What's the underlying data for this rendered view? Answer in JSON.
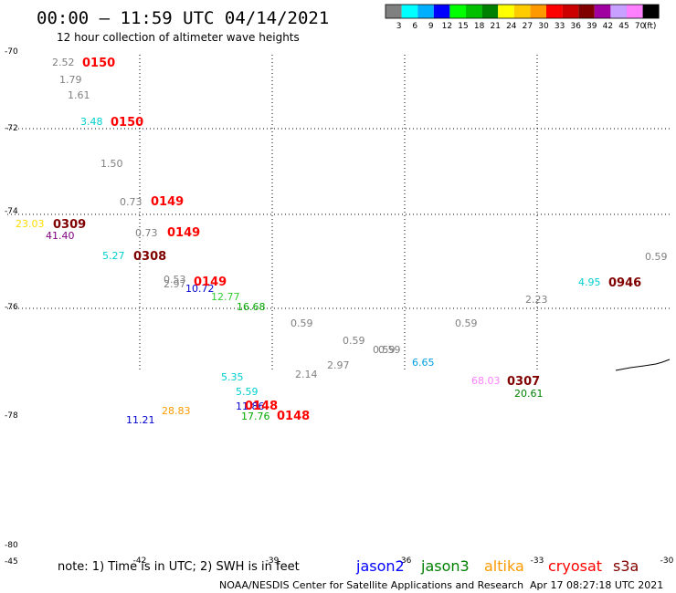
{
  "chart_data": {
    "type": "scatter",
    "title": "00:00 – 11:59 UTC 04/14/2021",
    "subtitle": "12 hour collection of altimeter wave heights",
    "y_ticks": [
      "-70",
      "-72",
      "-74",
      "-76",
      "-78",
      "-80"
    ],
    "x_ticks": [
      "-45",
      "-42",
      "-39",
      "-36",
      "-33",
      "-30"
    ],
    "colorbar": {
      "labels": [
        "3",
        "6",
        "9",
        "12",
        "15",
        "18",
        "21",
        "24",
        "27",
        "30",
        "33",
        "36",
        "39",
        "42",
        "45",
        "70",
        "(ft)"
      ],
      "colors": [
        "#808080",
        "#00ffff",
        "#00b0ff",
        "#0000ff",
        "#00ff00",
        "#00c000",
        "#008000",
        "#ffff00",
        "#ffcc00",
        "#ff9900",
        "#ff0000",
        "#cc0000",
        "#800000",
        "#a000a0",
        "#c8a0ff",
        "#ff80ff",
        "#000000"
      ]
    },
    "observations": [
      {
        "text": "2.52",
        "color": "#808080"
      },
      {
        "text": "1.79",
        "color": "#808080"
      },
      {
        "text": "1.61",
        "color": "#808080"
      },
      {
        "text": "3.48",
        "color": "#00d0d0"
      },
      {
        "text": "1.50",
        "color": "#808080"
      },
      {
        "text": "0.73",
        "color": "#808080"
      },
      {
        "text": "23.03",
        "color": "#ffdd00"
      },
      {
        "text": "41.40",
        "color": "#800080"
      },
      {
        "text": "0.73",
        "color": "#808080"
      },
      {
        "text": "5.27",
        "color": "#00d0d0"
      },
      {
        "text": "0.53",
        "color": "#808080"
      },
      {
        "text": "2.97",
        "color": "#808080"
      },
      {
        "text": "10.72",
        "color": "#0000cc"
      },
      {
        "text": "12.77",
        "color": "#33cc33"
      },
      {
        "text": "16.68",
        "color": "#00aa00"
      },
      {
        "text": "0.59",
        "color": "#808080"
      },
      {
        "text": "0.59",
        "color": "#808080"
      },
      {
        "text": "0.59",
        "color": "#808080"
      },
      {
        "text": "0.59",
        "color": "#808080"
      },
      {
        "text": "0.59",
        "color": "#808080"
      },
      {
        "text": "2.97",
        "color": "#808080"
      },
      {
        "text": "2.14",
        "color": "#808080"
      },
      {
        "text": "6.65",
        "color": "#00a0e0"
      },
      {
        "text": "5.35",
        "color": "#00d0d0"
      },
      {
        "text": "5.59",
        "color": "#00d0d0"
      },
      {
        "text": "11.86",
        "color": "#0000cc"
      },
      {
        "text": "17.76",
        "color": "#00aa00"
      },
      {
        "text": "28.83",
        "color": "#ff9900"
      },
      {
        "text": "11.21",
        "color": "#0000cc"
      },
      {
        "text": "68.03",
        "color": "#ff80ff"
      },
      {
        "text": "20.61",
        "color": "#008000"
      },
      {
        "text": "2.23",
        "color": "#808080"
      },
      {
        "text": "4.95",
        "color": "#00d0d0"
      },
      {
        "text": "0.59",
        "color": "#808080"
      }
    ],
    "pass_times": [
      {
        "text": "0150",
        "color": "#ff0000"
      },
      {
        "text": "0150",
        "color": "#ff0000"
      },
      {
        "text": "0149",
        "color": "#ff0000"
      },
      {
        "text": "0309",
        "color": "#800000"
      },
      {
        "text": "0149",
        "color": "#ff0000"
      },
      {
        "text": "0308",
        "color": "#800000"
      },
      {
        "text": "0149",
        "color": "#ff0000"
      },
      {
        "text": "0148",
        "color": "#ff0000"
      },
      {
        "text": "0148",
        "color": "#ff0000"
      },
      {
        "text": "0307",
        "color": "#800000"
      },
      {
        "text": "0946",
        "color": "#800000"
      }
    ],
    "grid": true
  },
  "footer": {
    "note": "note: 1) Time is in UTC; 2) SWH is in feet",
    "satellites": [
      {
        "name": "jason2",
        "color": "#0000ff"
      },
      {
        "name": "jason3",
        "color": "#008000"
      },
      {
        "name": "altika",
        "color": "#ff9900"
      },
      {
        "name": "cryosat",
        "color": "#ff0000"
      },
      {
        "name": "s3a",
        "color": "#800000"
      }
    ],
    "credit": "NOAA/NESDIS Center for Satellite Applications and Research",
    "timestamp": "Apr 17 08:27:18 UTC 2021"
  }
}
